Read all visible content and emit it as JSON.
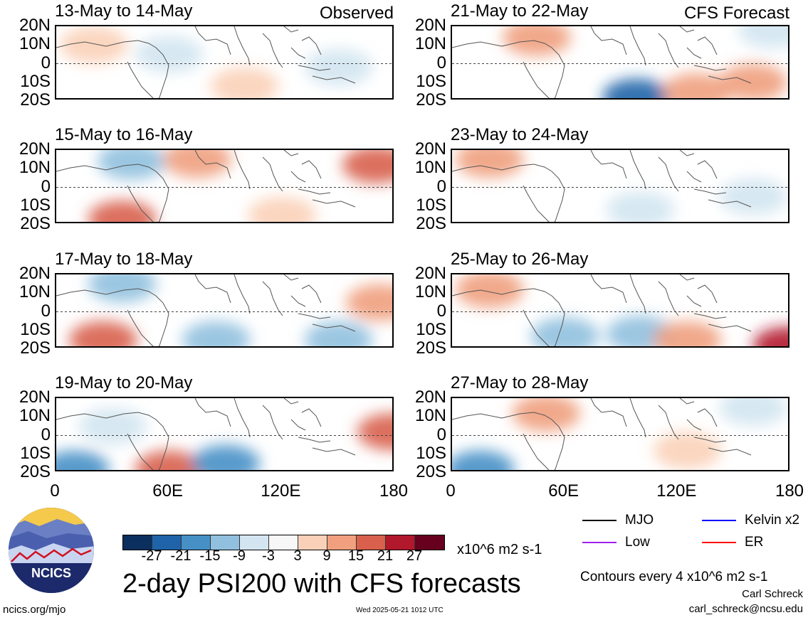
{
  "panels": [
    {
      "title": "13-May to 14-May",
      "tag": "Observed",
      "col": 0,
      "row": 0
    },
    {
      "title": "21-May to 22-May",
      "tag": "CFS Forecast",
      "col": 1,
      "row": 0
    },
    {
      "title": "15-May to 16-May",
      "tag": "",
      "col": 0,
      "row": 1
    },
    {
      "title": "23-May to 24-May",
      "tag": "",
      "col": 1,
      "row": 1
    },
    {
      "title": "17-May to 18-May",
      "tag": "",
      "col": 0,
      "row": 2
    },
    {
      "title": "25-May to 26-May",
      "tag": "",
      "col": 1,
      "row": 2
    },
    {
      "title": "19-May to 20-May",
      "tag": "",
      "col": 0,
      "row": 3
    },
    {
      "title": "27-May to 28-May",
      "tag": "",
      "col": 1,
      "row": 3
    }
  ],
  "lat_labels": [
    "20N",
    "10N",
    "0",
    "10S",
    "20S"
  ],
  "lon_labels": [
    "0",
    "60E",
    "120E",
    "180"
  ],
  "colorbar": {
    "ticks": [
      "-27",
      "-21",
      "-15",
      "-9",
      "-3",
      "3",
      "9",
      "15",
      "21",
      "27"
    ],
    "colors": [
      "#0b2f5e",
      "#1f64a8",
      "#4690c6",
      "#90c0de",
      "#d3e5f1",
      "#f7f7f7",
      "#fbd0b8",
      "#f0a07e",
      "#d8604c",
      "#b2182b",
      "#67001f"
    ],
    "units": "x10^6 m2 s-1"
  },
  "legend": [
    {
      "label": "MJO",
      "color": "#000000",
      "style": "solid"
    },
    {
      "label": "Kelvin x2",
      "color": "#0000ff",
      "style": "solid"
    },
    {
      "label": "Low",
      "color": "#a020f0",
      "style": "solid"
    },
    {
      "label": "ER",
      "color": "#ff0000",
      "style": "solid"
    }
  ],
  "logo": {
    "text": "NCICS"
  },
  "main_title": "2-day PSI200 with CFS forecasts",
  "contours_note": "Contours every 4 x10^6 m2 s-1",
  "author": "Carl Schreck",
  "email": "carl_schreck@ncsu.edu",
  "url": "ncics.org/mjo",
  "timestamp": "Wed 2025-05-21 1012 UTC",
  "chart_data": [
    {
      "type": "heatmap",
      "title": "13-May to 14-May",
      "label": "Observed",
      "xlim": [
        0,
        180
      ],
      "ylim": [
        -20,
        20
      ],
      "anomalies": [
        {
          "lon": 20,
          "lat": 10,
          "value": 6
        },
        {
          "lon": 60,
          "lat": 5,
          "value": -5
        },
        {
          "lon": 100,
          "lat": -12,
          "value": 6
        },
        {
          "lon": 150,
          "lat": -2,
          "value": -8
        }
      ]
    },
    {
      "type": "heatmap",
      "title": "21-May to 22-May",
      "label": "CFS Forecast",
      "xlim": [
        0,
        180
      ],
      "ylim": [
        -20,
        20
      ],
      "anomalies": [
        {
          "lon": 45,
          "lat": 14,
          "value": 12
        },
        {
          "lon": 98,
          "lat": -18,
          "value": -24
        },
        {
          "lon": 130,
          "lat": -15,
          "value": 14
        },
        {
          "lon": 160,
          "lat": -10,
          "value": 12
        },
        {
          "lon": 170,
          "lat": 18,
          "value": -8
        }
      ]
    },
    {
      "type": "heatmap",
      "title": "15-May to 16-May",
      "xlim": [
        0,
        180
      ],
      "ylim": [
        -20,
        20
      ],
      "anomalies": [
        {
          "lon": 35,
          "lat": -17,
          "value": 20
        },
        {
          "lon": 40,
          "lat": 14,
          "value": -14
        },
        {
          "lon": 75,
          "lat": 15,
          "value": 10
        },
        {
          "lon": 120,
          "lat": -15,
          "value": 9
        },
        {
          "lon": 170,
          "lat": 12,
          "value": 16
        }
      ]
    },
    {
      "type": "heatmap",
      "title": "23-May to 24-May",
      "xlim": [
        0,
        180
      ],
      "ylim": [
        -20,
        20
      ],
      "anomalies": [
        {
          "lon": 20,
          "lat": 15,
          "value": 15
        },
        {
          "lon": 100,
          "lat": -12,
          "value": -8
        },
        {
          "lon": 160,
          "lat": -5,
          "value": -6
        }
      ]
    },
    {
      "type": "heatmap",
      "title": "17-May to 18-May",
      "xlim": [
        0,
        180
      ],
      "ylim": [
        -20,
        20
      ],
      "anomalies": [
        {
          "lon": 25,
          "lat": -15,
          "value": 18
        },
        {
          "lon": 35,
          "lat": 15,
          "value": -12
        },
        {
          "lon": 85,
          "lat": -15,
          "value": -14
        },
        {
          "lon": 150,
          "lat": -15,
          "value": -12
        },
        {
          "lon": 172,
          "lat": 5,
          "value": 12
        }
      ]
    },
    {
      "type": "heatmap",
      "title": "25-May to 26-May",
      "xlim": [
        0,
        180
      ],
      "ylim": [
        -20,
        20
      ],
      "anomalies": [
        {
          "lon": 20,
          "lat": 12,
          "value": 10
        },
        {
          "lon": 60,
          "lat": -13,
          "value": -14
        },
        {
          "lon": 100,
          "lat": -12,
          "value": -10
        },
        {
          "lon": 125,
          "lat": -15,
          "value": 12
        },
        {
          "lon": 178,
          "lat": -18,
          "value": 24
        }
      ]
    },
    {
      "type": "heatmap",
      "title": "19-May to 20-May",
      "xlim": [
        0,
        180
      ],
      "ylim": [
        -20,
        20
      ],
      "anomalies": [
        {
          "lon": 10,
          "lat": -18,
          "value": -20
        },
        {
          "lon": 30,
          "lat": 5,
          "value": -8
        },
        {
          "lon": 60,
          "lat": -18,
          "value": 16
        },
        {
          "lon": 90,
          "lat": -15,
          "value": -16
        },
        {
          "lon": 178,
          "lat": 2,
          "value": 16
        }
      ]
    },
    {
      "type": "heatmap",
      "title": "27-May to 28-May",
      "xlim": [
        0,
        180
      ],
      "ylim": [
        -20,
        20
      ],
      "anomalies": [
        {
          "lon": 50,
          "lat": 12,
          "value": 12
        },
        {
          "lon": 15,
          "lat": -18,
          "value": -18
        },
        {
          "lon": 125,
          "lat": -8,
          "value": 8
        },
        {
          "lon": 160,
          "lat": 15,
          "value": -8
        }
      ]
    }
  ]
}
